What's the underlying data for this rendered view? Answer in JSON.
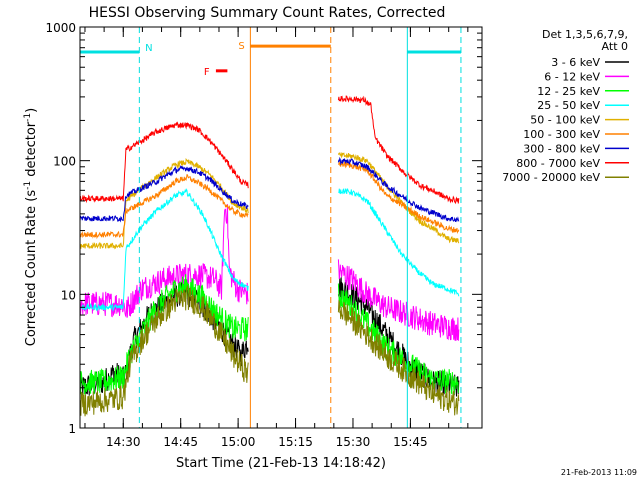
{
  "chart_data": {
    "type": "line",
    "title": "HESSI Observing Summary Count Rates, Corrected",
    "xlabel": "Start Time (21-Feb-13 14:18:42)",
    "ylabel": "Corrected Count Rate (s",
    "ylabel_sup1": "-1",
    "ylabel_mid": " detector",
    "ylabel_sup2": "-1",
    "ylabel_end": ")",
    "y_scale": "log",
    "ylim": [
      1,
      1000
    ],
    "x_unit": "minutes since 14:18:42",
    "xlim": [
      0,
      105
    ],
    "x_ticks": [
      {
        "label": "14:30",
        "x": 11.3
      },
      {
        "label": "14:45",
        "x": 26.3
      },
      {
        "label": "15:00",
        "x": 41.3
      },
      {
        "label": "15:15",
        "x": 56.3
      },
      {
        "label": "15:30",
        "x": 71.3
      },
      {
        "label": "15:45",
        "x": 86.3
      }
    ],
    "y_ticks": [
      {
        "label": "1",
        "v": 1
      },
      {
        "label": "10",
        "v": 10
      },
      {
        "label": "100",
        "v": 100
      },
      {
        "label": "1000",
        "v": 1000
      }
    ],
    "legend_header": [
      "Det 1,3,5,6,7,9,",
      "Att 0"
    ],
    "legend_position": "right",
    "series": [
      {
        "name": "3 - 6 keV",
        "color": "#000000",
        "pts": [
          [
            0,
            2
          ],
          [
            6,
            2.2
          ],
          [
            9,
            2.6
          ],
          [
            11.5,
            2.3
          ],
          [
            12,
            2.6
          ],
          [
            14,
            4.5
          ],
          [
            18,
            7
          ],
          [
            23,
            9
          ],
          [
            27,
            10.5
          ],
          [
            31,
            9
          ],
          [
            35,
            6.5
          ],
          [
            38,
            5
          ],
          [
            42,
            3.5
          ],
          [
            44,
            4.5
          ]
        ],
        "pts2": [
          [
            67.5,
            11.5
          ],
          [
            71,
            10
          ],
          [
            75,
            8
          ],
          [
            80,
            5
          ],
          [
            86,
            3
          ],
          [
            92,
            2.2
          ],
          [
            99,
            2
          ]
        ]
      },
      {
        "name": "6 - 12 keV",
        "color": "#ff00ff",
        "pts": [
          [
            0,
            8.5
          ],
          [
            11.3,
            8.5
          ],
          [
            12,
            7.5
          ],
          [
            16,
            11
          ],
          [
            22,
            13
          ],
          [
            27,
            14
          ],
          [
            31,
            14
          ],
          [
            35,
            13
          ],
          [
            37,
            11
          ],
          [
            37.8,
            45
          ],
          [
            38.5,
            40
          ],
          [
            39,
            15
          ],
          [
            41,
            11
          ],
          [
            44,
            10
          ]
        ],
        "pts2": [
          [
            67.5,
            15
          ],
          [
            71,
            13
          ],
          [
            75,
            10
          ],
          [
            80,
            8
          ],
          [
            86,
            7
          ],
          [
            92,
            6
          ],
          [
            99,
            5.5
          ]
        ]
      },
      {
        "name": "12 - 25 keV",
        "color": "#00ff00",
        "pts": [
          [
            0,
            2.2
          ],
          [
            6,
            2.2
          ],
          [
            11.3,
            2.4
          ],
          [
            13,
            3.5
          ],
          [
            16,
            5
          ],
          [
            20,
            8
          ],
          [
            25,
            11
          ],
          [
            28,
            11.5
          ],
          [
            32,
            9.5
          ],
          [
            36,
            7
          ],
          [
            40,
            5.5
          ],
          [
            44,
            5.5
          ]
        ],
        "pts2": [
          [
            67.5,
            10
          ],
          [
            71,
            8
          ],
          [
            75,
            6
          ],
          [
            80,
            4
          ],
          [
            86,
            3
          ],
          [
            92,
            2.3
          ],
          [
            99,
            2.2
          ]
        ]
      },
      {
        "name": "25 - 50 keV",
        "color": "#00ffff",
        "pts": [
          [
            0,
            8
          ],
          [
            11.3,
            8
          ],
          [
            12,
            22
          ],
          [
            16,
            32
          ],
          [
            20,
            42
          ],
          [
            25,
            55
          ],
          [
            28,
            58
          ],
          [
            30,
            48
          ],
          [
            32,
            40
          ],
          [
            34,
            30
          ],
          [
            36,
            22
          ],
          [
            38,
            17
          ],
          [
            40,
            13
          ],
          [
            42,
            12
          ],
          [
            44,
            11
          ]
        ],
        "pts2": [
          [
            67.5,
            60
          ],
          [
            71,
            58
          ],
          [
            75,
            50
          ],
          [
            80,
            30
          ],
          [
            84,
            20
          ],
          [
            88,
            15
          ],
          [
            92,
            12
          ],
          [
            96,
            11
          ],
          [
            99,
            10
          ]
        ]
      },
      {
        "name": "50 - 100 keV",
        "color": "#e0b000",
        "pts": [
          [
            0,
            23
          ],
          [
            11.3,
            23
          ],
          [
            12,
            50
          ],
          [
            16,
            62
          ],
          [
            20,
            75
          ],
          [
            25,
            93
          ],
          [
            28,
            98
          ],
          [
            31,
            90
          ],
          [
            34,
            78
          ],
          [
            37,
            63
          ],
          [
            40,
            48
          ],
          [
            44,
            42
          ]
        ],
        "pts2": [
          [
            67.5,
            110
          ],
          [
            71,
            108
          ],
          [
            75,
            100
          ],
          [
            80,
            65
          ],
          [
            85,
            45
          ],
          [
            89,
            35
          ],
          [
            93,
            30
          ],
          [
            96,
            26
          ],
          [
            99,
            25
          ]
        ]
      },
      {
        "name": "100 - 300 keV",
        "color": "#ff8000",
        "pts": [
          [
            0,
            28
          ],
          [
            11.3,
            28
          ],
          [
            12,
            42
          ],
          [
            16,
            48
          ],
          [
            20,
            55
          ],
          [
            25,
            70
          ],
          [
            28,
            75
          ],
          [
            31,
            68
          ],
          [
            34,
            60
          ],
          [
            37,
            50
          ],
          [
            40,
            42
          ],
          [
            44,
            38
          ]
        ],
        "pts2": [
          [
            67.5,
            95
          ],
          [
            71,
            92
          ],
          [
            75,
            85
          ],
          [
            80,
            55
          ],
          [
            85,
            45
          ],
          [
            89,
            38
          ],
          [
            93,
            34
          ],
          [
            96,
            31
          ],
          [
            99,
            30
          ]
        ]
      },
      {
        "name": "300 - 800 keV",
        "color": "#0000cc",
        "pts": [
          [
            0,
            37
          ],
          [
            11.3,
            37
          ],
          [
            12,
            55
          ],
          [
            16,
            62
          ],
          [
            20,
            70
          ],
          [
            25,
            85
          ],
          [
            28,
            88
          ],
          [
            31,
            82
          ],
          [
            34,
            72
          ],
          [
            37,
            60
          ],
          [
            40,
            50
          ],
          [
            44,
            45
          ]
        ],
        "pts2": [
          [
            67.5,
            100
          ],
          [
            71,
            98
          ],
          [
            75,
            90
          ],
          [
            80,
            65
          ],
          [
            85,
            52
          ],
          [
            89,
            44
          ],
          [
            93,
            40
          ],
          [
            96,
            37
          ],
          [
            99,
            36
          ]
        ]
      },
      {
        "name": "800 - 7000 keV",
        "color": "#ff0000",
        "pts": [
          [
            0,
            52
          ],
          [
            11.3,
            52
          ],
          [
            12,
            120
          ],
          [
            16,
            140
          ],
          [
            20,
            165
          ],
          [
            25,
            185
          ],
          [
            28,
            185
          ],
          [
            31,
            170
          ],
          [
            34,
            140
          ],
          [
            37,
            110
          ],
          [
            40,
            85
          ],
          [
            42,
            70
          ],
          [
            44,
            65
          ]
        ],
        "pts2": [
          [
            67.5,
            290
          ],
          [
            71,
            290
          ],
          [
            74,
            285
          ],
          [
            76,
            260
          ],
          [
            77,
            150
          ],
          [
            80,
            110
          ],
          [
            85,
            80
          ],
          [
            89,
            65
          ],
          [
            93,
            58
          ],
          [
            96,
            52
          ],
          [
            99,
            50
          ]
        ]
      },
      {
        "name": "7000 - 20000 keV",
        "color": "#808000",
        "pts": [
          [
            0,
            1.5
          ],
          [
            6,
            1.6
          ],
          [
            11.3,
            1.7
          ],
          [
            13,
            3
          ],
          [
            16,
            4.5
          ],
          [
            20,
            6.5
          ],
          [
            25,
            9
          ],
          [
            28,
            9.5
          ],
          [
            32,
            8
          ],
          [
            36,
            5.5
          ],
          [
            40,
            3.5
          ],
          [
            44,
            2.5
          ]
        ],
        "pts2": [
          [
            67.5,
            8
          ],
          [
            71,
            6.5
          ],
          [
            75,
            5
          ],
          [
            80,
            3.5
          ],
          [
            86,
            2.5
          ],
          [
            92,
            1.8
          ],
          [
            99,
            1.5
          ]
        ]
      }
    ],
    "attenuator_levels": [
      {
        "x0": 0,
        "x1": 15.5,
        "label": "N",
        "label_x": 17
      },
      {
        "x0": 85.5,
        "x1": 99.5,
        "label": "",
        "label_x": 0
      }
    ],
    "flag_F": {
      "label": "F",
      "x0": 35.5,
      "x1": 38.5
    },
    "saa": {
      "label": "S",
      "x0": 44.5,
      "x1": 65.5
    },
    "dashed_markers": [
      15.5,
      65.5,
      99.5
    ],
    "solid_markers": [
      44.5,
      85.5
    ],
    "timestamp": "21-Feb-2013 11:09"
  }
}
